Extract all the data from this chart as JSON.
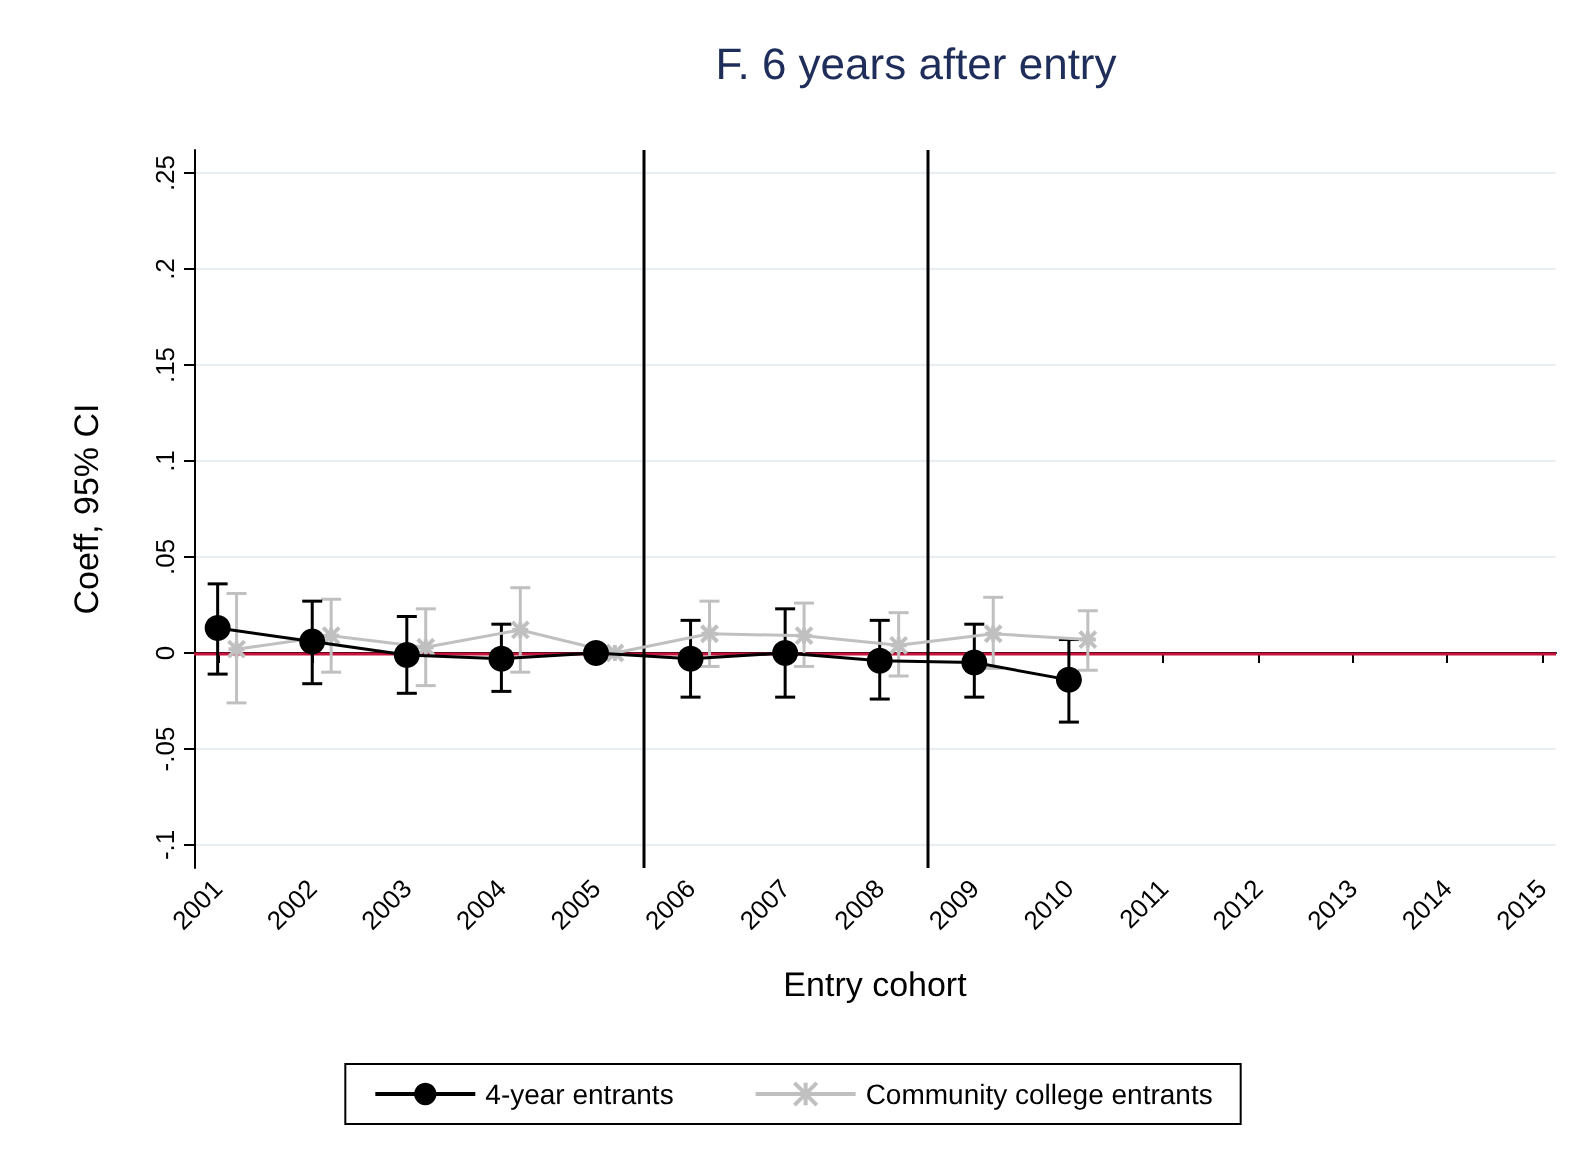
{
  "chart_data": {
    "type": "line",
    "title": "F. 6 years after entry",
    "xlabel": "Entry cohort",
    "ylabel": "Coeff, 95% CI",
    "xlim": [
      2000.75,
      2015.15
    ],
    "xticks": [
      2001,
      2002,
      2003,
      2004,
      2005,
      2006,
      2007,
      2008,
      2009,
      2010,
      2011,
      2012,
      2013,
      2014,
      2015
    ],
    "ylim": [
      -0.112,
      0.262
    ],
    "yticks": [
      {
        "value": -0.1,
        "label": "-.1"
      },
      {
        "value": -0.05,
        "label": "-.05"
      },
      0,
      {
        "value": 0.05,
        "label": ".05"
      },
      {
        "value": 0.1,
        "label": ".1"
      },
      {
        "value": 0.15,
        "label": ".15"
      },
      {
        "value": 0.2,
        "label": ".2"
      },
      {
        "value": 0.25,
        "label": ".25"
      }
    ],
    "grid": "y",
    "legend": "bottom",
    "series": [
      {
        "name": "4-year entrants",
        "color": "#000000",
        "marker": "circle",
        "x": [
          2001,
          2002,
          2003,
          2004,
          2005,
          2006,
          2007,
          2008,
          2009,
          2010
        ],
        "values": [
          0.013,
          0.006,
          -0.001,
          -0.003,
          0,
          -0.003,
          0,
          -0.004,
          -0.005,
          -0.014
        ],
        "errors": [
          [
            -0.011,
            0.036
          ],
          [
            -0.016,
            0.027
          ],
          [
            -0.021,
            0.019
          ],
          [
            -0.02,
            0.015
          ],
          null,
          [
            -0.023,
            0.017
          ],
          [
            -0.023,
            0.023
          ],
          [
            -0.024,
            0.017
          ],
          [
            -0.023,
            0.015
          ],
          [
            -0.036,
            0.007
          ]
        ]
      },
      {
        "name": "Community college entrants",
        "color": "#c0c0c0",
        "marker": "cross",
        "x": [
          2001.2,
          2002.2,
          2003.2,
          2004.2,
          2005.2,
          2006.2,
          2007.2,
          2008.2,
          2009.2,
          2010.2
        ],
        "values": [
          0.002,
          0.009,
          0.003,
          0.012,
          0,
          0.01,
          0.009,
          0.004,
          0.01,
          0.007
        ],
        "errors": [
          [
            -0.026,
            0.031
          ],
          [
            -0.01,
            0.028
          ],
          [
            -0.017,
            0.023
          ],
          [
            -0.01,
            0.034
          ],
          null,
          [
            -0.007,
            0.027
          ],
          [
            -0.007,
            0.026
          ],
          [
            -0.012,
            0.021
          ],
          [
            -0.008,
            0.029
          ],
          [
            -0.009,
            0.022
          ]
        ]
      }
    ],
    "ref_lines": [
      {
        "axis": "y",
        "value": 0,
        "color": "#c8143c"
      },
      {
        "axis": "x",
        "value": 2005.5,
        "color": "#000000"
      },
      {
        "axis": "x",
        "value": 2008.5,
        "color": "#000000"
      }
    ]
  }
}
